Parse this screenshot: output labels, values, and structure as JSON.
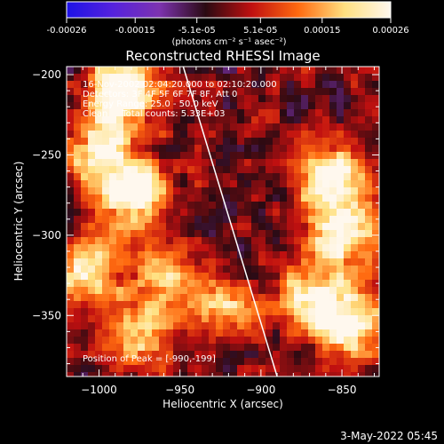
{
  "colorbar": {
    "tick_labels": [
      "-0.00026",
      "-0.00015",
      "-5.1e-05",
      "5.1e-05",
      "0.00015",
      "0.00026"
    ],
    "tick_values": [
      -0.00026,
      -0.00015,
      -5.1e-05,
      5.1e-05,
      0.00015,
      0.00026
    ],
    "range": [
      -0.00026,
      0.00026
    ],
    "unit_label": "(photons cm⁻² s⁻¹ asec⁻²)",
    "colors": [
      "#1d12e6",
      "#5522dd",
      "#7d33b0",
      "#2a0a12",
      "#c01010",
      "#ff6a10",
      "#ffe080",
      "#fff8ee"
    ]
  },
  "chart_data": {
    "type": "heatmap",
    "title": "Reconstructed RHESSI Image",
    "xlabel": "Heliocentric X (arcsec)",
    "ylabel": "Heliocentric Y (arcsec)",
    "xlim": [
      -1020,
      -827
    ],
    "ylim": [
      -388,
      -195
    ],
    "x_ticks": [
      -1000,
      -950,
      -900,
      -850
    ],
    "y_ticks": [
      -350,
      -300,
      -250,
      -200
    ],
    "x_tick_labels": [
      "−1000",
      "−950",
      "−900",
      "−850"
    ],
    "y_tick_labels": [
      "−350",
      "−300",
      "−250",
      "−200"
    ],
    "annotations": [
      "16-Nov-2002 02:04:20.000 to 02:10:20.000",
      "Detectors: 3F 4F 5F 6F 7F 8F, Att 0",
      "Energy Range: 25.0 - 50.0 keV",
      "Clean     Total counts: 5.33E+03"
    ],
    "peak_annotation": "Position of Peak = [-990,-199]",
    "peak_position": [
      -990,
      -199
    ],
    "limb_line": [
      [
        -948,
        -195
      ],
      [
        -890,
        -388
      ]
    ],
    "bright_regions": [
      {
        "x": -985,
        "y": -210,
        "level": 0.95
      },
      {
        "x": -998,
        "y": -245,
        "level": 0.8
      },
      {
        "x": -980,
        "y": -275,
        "level": 0.9
      },
      {
        "x": -1008,
        "y": -320,
        "level": 0.75
      },
      {
        "x": -975,
        "y": -360,
        "level": 0.7
      },
      {
        "x": -855,
        "y": -265,
        "level": 0.9
      },
      {
        "x": -850,
        "y": -300,
        "level": 0.85
      },
      {
        "x": -870,
        "y": -340,
        "level": 0.75
      },
      {
        "x": -845,
        "y": -355,
        "level": 0.9
      },
      {
        "x": -925,
        "y": -345,
        "level": 0.6
      },
      {
        "x": -960,
        "y": -320,
        "level": 0.5
      }
    ]
  },
  "footer": {
    "date": "3-May-2022 05:45"
  }
}
